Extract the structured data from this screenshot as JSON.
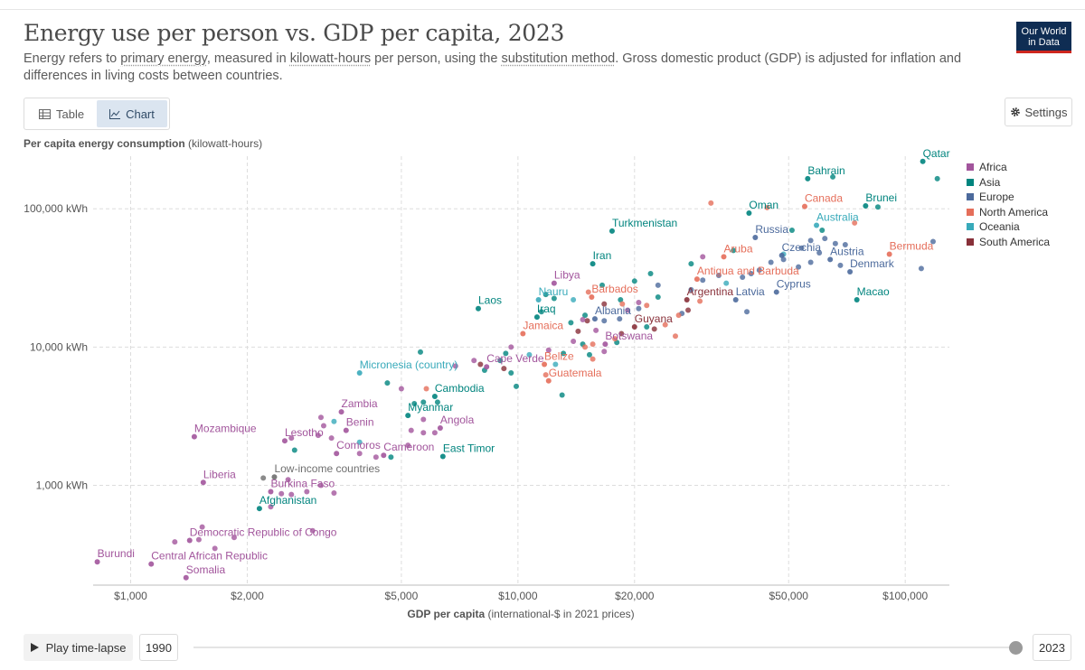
{
  "title": "Energy use per person vs. GDP per capita, 2023",
  "subtitle": {
    "p1": "Energy refers to ",
    "link1": "primary energy",
    "p2": ", measured in ",
    "link2": "kilowatt-hours",
    "p3": " per person, using the ",
    "link3": "substitution method",
    "p4": ". Gross domestic product (GDP) is adjusted for inflation and differences in living costs between countries."
  },
  "logo": {
    "line1": "Our World",
    "line2": "in Data"
  },
  "tabs": [
    {
      "label": "Table",
      "icon": "table-icon"
    },
    {
      "label": "Chart",
      "icon": "chart-icon"
    }
  ],
  "settings_label": "Settings",
  "footer": {
    "play_label": "Play time-lapse",
    "start_year": "1990",
    "end_year": "2023"
  },
  "colors": {
    "Africa": "#a2559c",
    "Asia": "#00847e",
    "Europe": "#4c6a9c",
    "North America": "#e56e5a",
    "Oceania": "#38aaba",
    "South America": "#883039",
    "income": "#6e6e6e"
  },
  "chart_data": {
    "type": "scatter",
    "title": "Energy use per person vs. GDP per capita, 2023",
    "ylabel_bold": "Per capita energy consumption",
    "ylabel_rest": " (kilowatt-hours)",
    "xlabel_bold": "GDP per capita",
    "xlabel_rest": " (international-$ in 2021 prices)",
    "x_scale": "log",
    "y_scale": "log",
    "xlim": [
      800,
      130000
    ],
    "ylim": [
      190,
      240000
    ],
    "x_ticks": [
      {
        "v": 1000,
        "label": "$1,000"
      },
      {
        "v": 2000,
        "label": "$2,000"
      },
      {
        "v": 5000,
        "label": "$5,000"
      },
      {
        "v": 10000,
        "label": "$10,000"
      },
      {
        "v": 20000,
        "label": "$20,000"
      },
      {
        "v": 50000,
        "label": "$50,000"
      },
      {
        "v": 100000,
        "label": "$100,000"
      }
    ],
    "y_ticks": [
      {
        "v": 1000,
        "label": "1,000 kWh"
      },
      {
        "v": 10000,
        "label": "10,000 kWh"
      },
      {
        "v": 100000,
        "label": "100,000 kWh"
      }
    ],
    "grid": true,
    "legend_position": "right",
    "legend": [
      "Africa",
      "Asia",
      "Europe",
      "North America",
      "Oceania",
      "South America"
    ],
    "labeled_points": [
      {
        "label": "Qatar",
        "r": "Asia",
        "x": 111000,
        "y": 220000
      },
      {
        "label": "Bahrain",
        "r": "Asia",
        "x": 56000,
        "y": 165000
      },
      {
        "label": "Brunei",
        "r": "Asia",
        "x": 79000,
        "y": 105000
      },
      {
        "label": "Oman",
        "r": "Asia",
        "x": 39500,
        "y": 93000
      },
      {
        "label": "Canada",
        "r": "North America",
        "x": 55000,
        "y": 104000
      },
      {
        "label": "Turkmenistan",
        "r": "Asia",
        "x": 17500,
        "y": 69000
      },
      {
        "label": "Australia",
        "r": "Oceania",
        "x": 59000,
        "y": 76000
      },
      {
        "label": "Russia",
        "r": "Europe",
        "x": 41000,
        "y": 62000
      },
      {
        "label": "Aruba",
        "r": "North America",
        "x": 34000,
        "y": 45000
      },
      {
        "label": "Bermuda",
        "r": "North America",
        "x": 91000,
        "y": 47000
      },
      {
        "label": "Austria",
        "r": "Europe",
        "x": 64000,
        "y": 43000
      },
      {
        "label": "Czechia",
        "r": "Europe",
        "x": 48000,
        "y": 46000
      },
      {
        "label": "Iran",
        "r": "Asia",
        "x": 15600,
        "y": 40000
      },
      {
        "label": "Denmark",
        "r": "Europe",
        "x": 72000,
        "y": 35000
      },
      {
        "label": "Antigua and Barbuda",
        "r": "North America",
        "x": 29000,
        "y": 31000
      },
      {
        "label": "Libya",
        "r": "Africa",
        "x": 12400,
        "y": 29000
      },
      {
        "label": "Cyprus",
        "r": "Europe",
        "x": 46500,
        "y": 25000
      },
      {
        "label": "Barbados",
        "r": "North America",
        "x": 15500,
        "y": 23000
      },
      {
        "label": "Argentina",
        "r": "South America",
        "x": 27300,
        "y": 22000
      },
      {
        "label": "Latvia",
        "r": "Europe",
        "x": 36500,
        "y": 22000
      },
      {
        "label": "Nauru",
        "r": "Oceania",
        "x": 11300,
        "y": 22000
      },
      {
        "label": "Macao",
        "r": "Asia",
        "x": 75000,
        "y": 22000
      },
      {
        "label": "Laos",
        "r": "Asia",
        "x": 7900,
        "y": 19000
      },
      {
        "label": "Iraq",
        "r": "Asia",
        "x": 11200,
        "y": 16500
      },
      {
        "label": "Albania",
        "r": "Europe",
        "x": 15800,
        "y": 16000
      },
      {
        "label": "Guyana",
        "r": "South America",
        "x": 20000,
        "y": 14000
      },
      {
        "label": "Jamaica",
        "r": "North America",
        "x": 10300,
        "y": 12500
      },
      {
        "label": "Botswana",
        "r": "Africa",
        "x": 16800,
        "y": 10500
      },
      {
        "label": "Belize",
        "r": "North America",
        "x": 11700,
        "y": 7500
      },
      {
        "label": "Cape Verde",
        "r": "Africa",
        "x": 8300,
        "y": 7200
      },
      {
        "label": "Micronesia (country)",
        "r": "Oceania",
        "x": 3900,
        "y": 6500
      },
      {
        "label": "Guatemala",
        "r": "North America",
        "x": 12000,
        "y": 5700
      },
      {
        "label": "Cambodia",
        "r": "Asia",
        "x": 6100,
        "y": 4400
      },
      {
        "label": "Zambia",
        "r": "Africa",
        "x": 3500,
        "y": 3400
      },
      {
        "label": "Myanmar",
        "r": "Asia",
        "x": 5200,
        "y": 3200
      },
      {
        "label": "Angola",
        "r": "Africa",
        "x": 6300,
        "y": 2600
      },
      {
        "label": "Benin",
        "r": "Africa",
        "x": 3600,
        "y": 2500
      },
      {
        "label": "Mozambique",
        "r": "Africa",
        "x": 1460,
        "y": 2250
      },
      {
        "label": "Lesotho",
        "r": "Africa",
        "x": 2500,
        "y": 2100
      },
      {
        "label": "Comoros",
        "r": "Africa",
        "x": 3400,
        "y": 1700
      },
      {
        "label": "Cameroon",
        "r": "Africa",
        "x": 4500,
        "y": 1650
      },
      {
        "label": "East Timor",
        "r": "Asia",
        "x": 6400,
        "y": 1620
      },
      {
        "label": "Low-income countries",
        "r": "income",
        "x": 2350,
        "y": 1150
      },
      {
        "label": "Liberia",
        "r": "Africa",
        "x": 1540,
        "y": 1050
      },
      {
        "label": "Burkina Faso",
        "r": "Africa",
        "x": 2300,
        "y": 900
      },
      {
        "label": "Afghanistan",
        "r": "Asia",
        "x": 2150,
        "y": 680
      },
      {
        "label": "Democratic Republic of Congo",
        "r": "Africa",
        "x": 1420,
        "y": 400
      },
      {
        "label": "Central African Republic",
        "r": "Africa",
        "x": 1130,
        "y": 270
      },
      {
        "label": "Burundi",
        "r": "Africa",
        "x": 820,
        "y": 280
      },
      {
        "label": "Somalia",
        "r": "Africa",
        "x": 1390,
        "y": 215
      }
    ],
    "points": [
      {
        "r": "Asia",
        "x": 65000,
        "y": 170000
      },
      {
        "r": "Asia",
        "x": 121000,
        "y": 165000
      },
      {
        "r": "Asia",
        "x": 85000,
        "y": 103000
      },
      {
        "r": "Europe",
        "x": 118000,
        "y": 58000
      },
      {
        "r": "Europe",
        "x": 110000,
        "y": 37000
      },
      {
        "r": "Asia",
        "x": 61000,
        "y": 70000
      },
      {
        "r": "Asia",
        "x": 51000,
        "y": 70000
      },
      {
        "r": "North America",
        "x": 31500,
        "y": 110000
      },
      {
        "r": "North America",
        "x": 44000,
        "y": 102000
      },
      {
        "r": "North America",
        "x": 74000,
        "y": 79000
      },
      {
        "r": "Europe",
        "x": 62000,
        "y": 61000
      },
      {
        "r": "Europe",
        "x": 57000,
        "y": 59000
      },
      {
        "r": "Europe",
        "x": 66000,
        "y": 56000
      },
      {
        "r": "Europe",
        "x": 70000,
        "y": 55000
      },
      {
        "r": "Europe",
        "x": 54000,
        "y": 52000
      },
      {
        "r": "Europe",
        "x": 60000,
        "y": 48000
      },
      {
        "r": "Europe",
        "x": 48500,
        "y": 43000
      },
      {
        "r": "Europe",
        "x": 45000,
        "y": 41000
      },
      {
        "r": "Europe",
        "x": 57000,
        "y": 41000
      },
      {
        "r": "Europe",
        "x": 53000,
        "y": 38000
      },
      {
        "r": "Europe",
        "x": 68000,
        "y": 39000
      },
      {
        "r": "Europe",
        "x": 42000,
        "y": 36000
      },
      {
        "r": "Europe",
        "x": 40000,
        "y": 34000
      },
      {
        "r": "Europe",
        "x": 38000,
        "y": 32000
      },
      {
        "r": "Europe",
        "x": 33000,
        "y": 33000
      },
      {
        "r": "Europe",
        "x": 30000,
        "y": 30500
      },
      {
        "r": "Europe",
        "x": 28000,
        "y": 26000
      },
      {
        "r": "Europe",
        "x": 23000,
        "y": 28000
      },
      {
        "r": "Europe",
        "x": 20500,
        "y": 19000
      },
      {
        "r": "Europe",
        "x": 18300,
        "y": 16000
      },
      {
        "r": "Europe",
        "x": 16700,
        "y": 15500
      },
      {
        "r": "Europe",
        "x": 26500,
        "y": 17500
      },
      {
        "r": "Europe",
        "x": 39000,
        "y": 18000
      },
      {
        "r": "Asia",
        "x": 36000,
        "y": 50000
      },
      {
        "r": "Asia",
        "x": 28000,
        "y": 40000
      },
      {
        "r": "Asia",
        "x": 22000,
        "y": 34000
      },
      {
        "r": "Asia",
        "x": 20000,
        "y": 30000
      },
      {
        "r": "Asia",
        "x": 23000,
        "y": 23000
      },
      {
        "r": "Asia",
        "x": 18400,
        "y": 22000
      },
      {
        "r": "Asia",
        "x": 16500,
        "y": 28000
      },
      {
        "r": "Asia",
        "x": 12400,
        "y": 22500
      },
      {
        "r": "Asia",
        "x": 11500,
        "y": 18000
      },
      {
        "r": "Asia",
        "x": 13700,
        "y": 15000
      },
      {
        "r": "Asia",
        "x": 14700,
        "y": 10500
      },
      {
        "r": "Asia",
        "x": 9300,
        "y": 9000
      },
      {
        "r": "Asia",
        "x": 5600,
        "y": 9200
      },
      {
        "r": "Asia",
        "x": 5700,
        "y": 4000
      },
      {
        "r": "Asia",
        "x": 5400,
        "y": 3900
      },
      {
        "r": "Asia",
        "x": 6200,
        "y": 4000
      },
      {
        "r": "Asia",
        "x": 13000,
        "y": 4500
      },
      {
        "r": "Asia",
        "x": 9600,
        "y": 6500
      },
      {
        "r": "Asia",
        "x": 9900,
        "y": 5200
      },
      {
        "r": "Asia",
        "x": 4600,
        "y": 5500
      },
      {
        "r": "Asia",
        "x": 9000,
        "y": 8000
      },
      {
        "r": "Asia",
        "x": 8200,
        "y": 6800
      },
      {
        "r": "Asia",
        "x": 15300,
        "y": 8800
      },
      {
        "r": "Asia",
        "x": 18000,
        "y": 10800
      },
      {
        "r": "Asia",
        "x": 13100,
        "y": 9000
      },
      {
        "r": "Asia",
        "x": 11800,
        "y": 24000
      },
      {
        "r": "Asia",
        "x": 14900,
        "y": 17000
      },
      {
        "r": "Asia",
        "x": 21500,
        "y": 14000
      },
      {
        "r": "Asia",
        "x": 4700,
        "y": 1600
      },
      {
        "r": "Asia",
        "x": 2650,
        "y": 1800
      },
      {
        "r": "Oceania",
        "x": 48500,
        "y": 47000
      },
      {
        "r": "Oceania",
        "x": 34500,
        "y": 29000
      },
      {
        "r": "Oceania",
        "x": 3350,
        "y": 2900
      },
      {
        "r": "Oceania",
        "x": 3900,
        "y": 2050
      },
      {
        "r": "Oceania",
        "x": 12500,
        "y": 7500
      },
      {
        "r": "Oceania",
        "x": 10700,
        "y": 8800
      },
      {
        "r": "Oceania",
        "x": 13900,
        "y": 22000
      },
      {
        "r": "North America",
        "x": 18600,
        "y": 20500
      },
      {
        "r": "North America",
        "x": 21500,
        "y": 20000
      },
      {
        "r": "North America",
        "x": 26000,
        "y": 17000
      },
      {
        "r": "North America",
        "x": 29500,
        "y": 21500
      },
      {
        "r": "North America",
        "x": 24000,
        "y": 14500
      },
      {
        "r": "North America",
        "x": 25500,
        "y": 12000
      },
      {
        "r": "North America",
        "x": 17800,
        "y": 11500
      },
      {
        "r": "North America",
        "x": 15600,
        "y": 10500
      },
      {
        "r": "North America",
        "x": 14900,
        "y": 10000
      },
      {
        "r": "North America",
        "x": 15600,
        "y": 8200
      },
      {
        "r": "North America",
        "x": 11800,
        "y": 6300
      },
      {
        "r": "North America",
        "x": 5800,
        "y": 5000
      },
      {
        "r": "North America",
        "x": 15200,
        "y": 25000
      },
      {
        "r": "South America",
        "x": 27500,
        "y": 18500
      },
      {
        "r": "South America",
        "x": 14300,
        "y": 13000
      },
      {
        "r": "South America",
        "x": 18500,
        "y": 12500
      },
      {
        "r": "South America",
        "x": 22500,
        "y": 13500
      },
      {
        "r": "South America",
        "x": 15100,
        "y": 15500
      },
      {
        "r": "South America",
        "x": 16700,
        "y": 20500
      },
      {
        "r": "South America",
        "x": 9200,
        "y": 7000
      },
      {
        "r": "South America",
        "x": 8000,
        "y": 7500
      },
      {
        "r": "Africa",
        "x": 30000,
        "y": 45000
      },
      {
        "r": "Africa",
        "x": 20500,
        "y": 21000
      },
      {
        "r": "Africa",
        "x": 19200,
        "y": 18500
      },
      {
        "r": "Africa",
        "x": 14700,
        "y": 15800
      },
      {
        "r": "Africa",
        "x": 15900,
        "y": 13200
      },
      {
        "r": "Africa",
        "x": 13900,
        "y": 11000
      },
      {
        "r": "Africa",
        "x": 16700,
        "y": 9300
      },
      {
        "r": "Africa",
        "x": 12000,
        "y": 9500
      },
      {
        "r": "Africa",
        "x": 9600,
        "y": 10000
      },
      {
        "r": "Africa",
        "x": 7700,
        "y": 8000
      },
      {
        "r": "Africa",
        "x": 6900,
        "y": 7300
      },
      {
        "r": "Africa",
        "x": 5000,
        "y": 5000
      },
      {
        "r": "Africa",
        "x": 5700,
        "y": 3000
      },
      {
        "r": "Africa",
        "x": 5300,
        "y": 2500
      },
      {
        "r": "Africa",
        "x": 5700,
        "y": 2400
      },
      {
        "r": "Africa",
        "x": 6100,
        "y": 2400
      },
      {
        "r": "Africa",
        "x": 5200,
        "y": 1950
      },
      {
        "r": "Africa",
        "x": 4300,
        "y": 1600
      },
      {
        "r": "Africa",
        "x": 3900,
        "y": 1700
      },
      {
        "r": "Africa",
        "x": 3150,
        "y": 2700
      },
      {
        "r": "Africa",
        "x": 3050,
        "y": 2300
      },
      {
        "r": "Africa",
        "x": 3100,
        "y": 3100
      },
      {
        "r": "Africa",
        "x": 3300,
        "y": 2200
      },
      {
        "r": "Africa",
        "x": 2600,
        "y": 2200
      },
      {
        "r": "Africa",
        "x": 2550,
        "y": 1100
      },
      {
        "r": "Africa",
        "x": 2450,
        "y": 870
      },
      {
        "r": "Africa",
        "x": 2600,
        "y": 860
      },
      {
        "r": "Africa",
        "x": 2850,
        "y": 900
      },
      {
        "r": "Africa",
        "x": 3350,
        "y": 880
      },
      {
        "r": "Africa",
        "x": 3100,
        "y": 1000
      },
      {
        "r": "Africa",
        "x": 2300,
        "y": 700
      },
      {
        "r": "Africa",
        "x": 2950,
        "y": 470
      },
      {
        "r": "Africa",
        "x": 1530,
        "y": 500
      },
      {
        "r": "Africa",
        "x": 1650,
        "y": 350
      },
      {
        "r": "Africa",
        "x": 1500,
        "y": 405
      },
      {
        "r": "Africa",
        "x": 1300,
        "y": 390
      },
      {
        "r": "Africa",
        "x": 1850,
        "y": 420
      },
      {
        "r": "income",
        "x": 2200,
        "y": 1130
      }
    ]
  }
}
